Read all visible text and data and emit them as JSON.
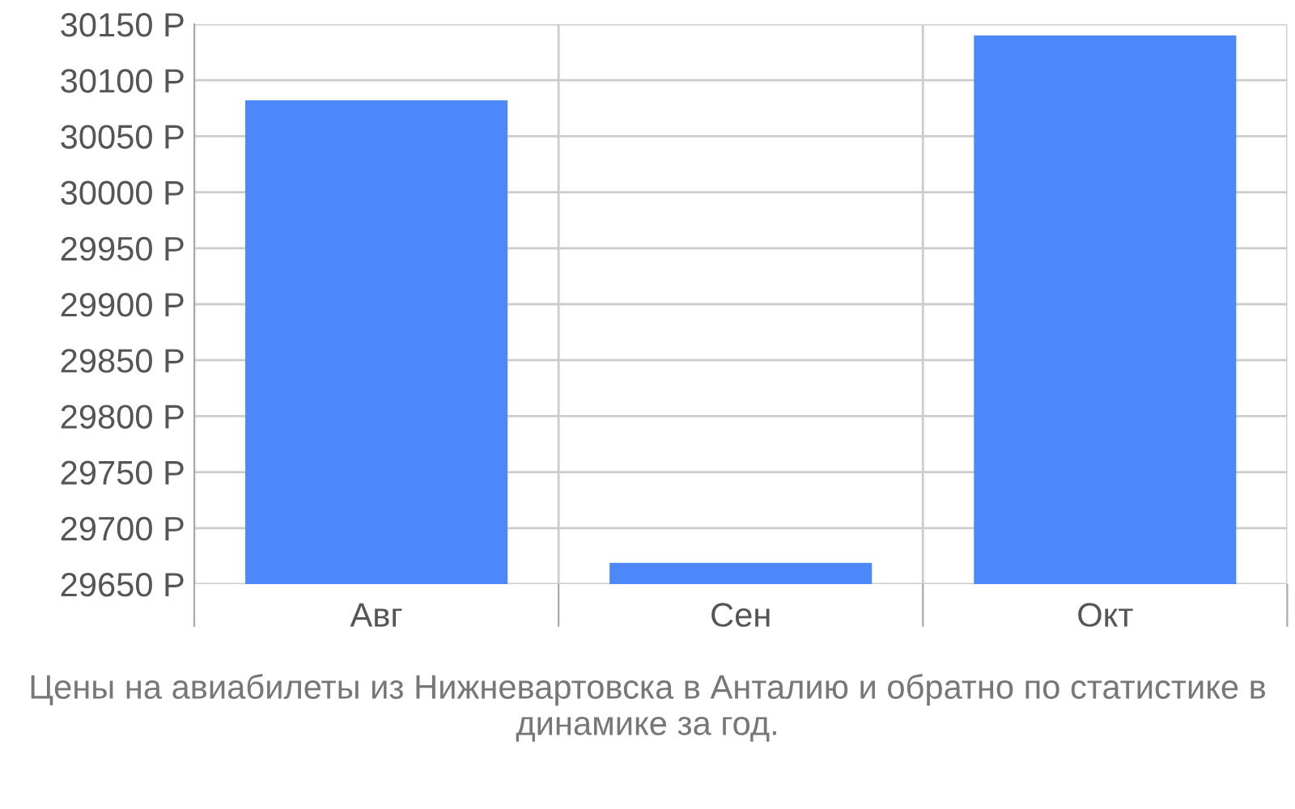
{
  "chart_data": {
    "type": "bar",
    "categories": [
      "Авг",
      "Сен",
      "Окт"
    ],
    "values": [
      30082,
      29669,
      30140
    ],
    "color": "#4d88fa",
    "ylim": [
      29650,
      30150
    ],
    "yticks": [
      {
        "value": 29650,
        "label": "29650 Р"
      },
      {
        "value": 29700,
        "label": "29700 Р"
      },
      {
        "value": 29750,
        "label": "29750 Р"
      },
      {
        "value": 29800,
        "label": "29800 Р"
      },
      {
        "value": 29850,
        "label": "29850 Р"
      },
      {
        "value": 29900,
        "label": "29900 Р"
      },
      {
        "value": 29950,
        "label": "29950 Р"
      },
      {
        "value": 30000,
        "label": "30000 Р"
      },
      {
        "value": 30050,
        "label": "30050 Р"
      },
      {
        "value": 30100,
        "label": "30100 Р"
      },
      {
        "value": 30150,
        "label": "30150 Р"
      }
    ],
    "grid": true,
    "annotations": [
      "Цены на авиабилеты из Нижневартовска в Анталию и обратно по статистике в динамике за год."
    ]
  }
}
